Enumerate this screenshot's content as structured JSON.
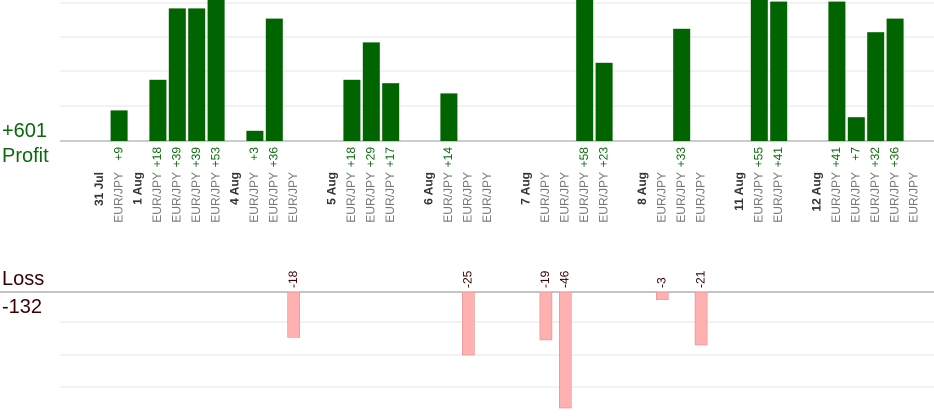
{
  "summary": {
    "profit_total": "+601",
    "profit_label": "Profit",
    "loss_label": "Loss",
    "loss_total": "-132"
  },
  "colors": {
    "profit_bar": "#006400",
    "profit_text": "#0b6b0b",
    "loss_bar": "#ffb0b0",
    "loss_text": "#3a0000",
    "pair_text": "#777777",
    "date_text": "#333333",
    "grid": "#e6e6e6",
    "axis": "#999999"
  },
  "chart_data": {
    "type": "bar",
    "ylim_profit": [
      0,
      40
    ],
    "ylim_loss": [
      -46,
      0
    ],
    "dates": [
      {
        "label": "31 Jul",
        "slot": 0
      },
      {
        "label": "1 Aug",
        "slot": 2
      },
      {
        "label": "4 Aug",
        "slot": 7
      },
      {
        "label": "5 Aug",
        "slot": 12
      },
      {
        "label": "6 Aug",
        "slot": 17
      },
      {
        "label": "7 Aug",
        "slot": 22
      },
      {
        "label": "8 Aug",
        "slot": 28
      },
      {
        "label": "11 Aug",
        "slot": 33
      },
      {
        "label": "12 Aug",
        "slot": 37
      }
    ],
    "trades": [
      {
        "slot": 1,
        "pair": "EUR/JPY",
        "value": 9
      },
      {
        "slot": 3,
        "pair": "EUR/JPY",
        "value": 18
      },
      {
        "slot": 4,
        "pair": "EUR/JPY",
        "value": 39
      },
      {
        "slot": 5,
        "pair": "EUR/JPY",
        "value": 39
      },
      {
        "slot": 6,
        "pair": "EUR/JPY",
        "value": 53
      },
      {
        "slot": 8,
        "pair": "EUR/JPY",
        "value": 3
      },
      {
        "slot": 9,
        "pair": "EUR/JPY",
        "value": 36
      },
      {
        "slot": 10,
        "pair": "EUR/JPY",
        "value": -18
      },
      {
        "slot": 13,
        "pair": "EUR/JPY",
        "value": 18
      },
      {
        "slot": 14,
        "pair": "EUR/JPY",
        "value": 29
      },
      {
        "slot": 15,
        "pair": "EUR/JPY",
        "value": 17
      },
      {
        "slot": 18,
        "pair": "EUR/JPY",
        "value": 14
      },
      {
        "slot": 19,
        "pair": "EUR/JPY",
        "value": -25
      },
      {
        "slot": 20,
        "pair": "EUR/JPY",
        "value": null
      },
      {
        "slot": 23,
        "pair": "EUR/JPY",
        "value": -19
      },
      {
        "slot": 24,
        "pair": "EUR/JPY",
        "value": -46
      },
      {
        "slot": 25,
        "pair": "EUR/JPY",
        "value": 58
      },
      {
        "slot": 26,
        "pair": "EUR/JPY",
        "value": 23
      },
      {
        "slot": 29,
        "pair": "EUR/JPY",
        "value": -3
      },
      {
        "slot": 30,
        "pair": "EUR/JPY",
        "value": 33
      },
      {
        "slot": 31,
        "pair": "EUR/JPY",
        "value": -21
      },
      {
        "slot": 34,
        "pair": "EUR/JPY",
        "value": 55
      },
      {
        "slot": 35,
        "pair": "EUR/JPY",
        "value": 41
      },
      {
        "slot": 38,
        "pair": "EUR/JPY",
        "value": 41
      },
      {
        "slot": 39,
        "pair": "EUR/JPY",
        "value": 7
      },
      {
        "slot": 40,
        "pair": "EUR/JPY",
        "value": 32
      },
      {
        "slot": 41,
        "pair": "EUR/JPY",
        "value": 36
      },
      {
        "slot": 42,
        "pair": "EUR/JPY",
        "value": null
      }
    ]
  }
}
